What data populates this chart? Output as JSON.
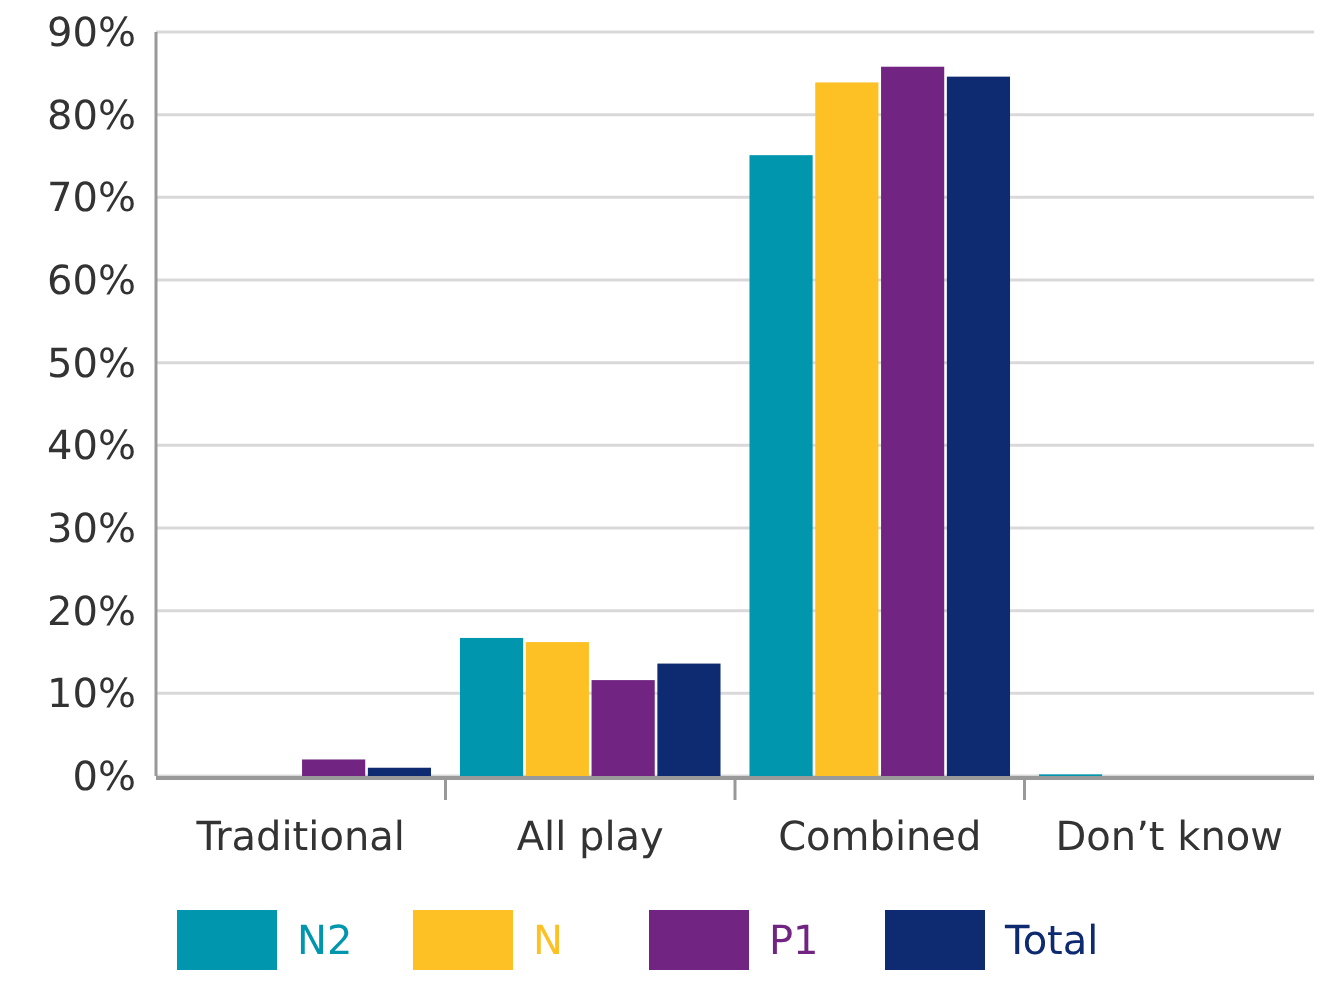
{
  "chart_data": {
    "type": "bar",
    "categories": [
      "Traditional",
      "All play",
      "Combined",
      "Don’t know"
    ],
    "series": [
      {
        "name": "N2",
        "color": "#0096ae",
        "values": [
          0,
          16.7,
          75.1,
          0.2
        ]
      },
      {
        "name": "N",
        "color": "#fdc125",
        "values": [
          0,
          16.2,
          83.9,
          0
        ]
      },
      {
        "name": "P1",
        "color": "#712481",
        "values": [
          2,
          11.6,
          85.8,
          0
        ]
      },
      {
        "name": "Total",
        "color": "#0e2b72",
        "values": [
          1,
          13.6,
          84.6,
          0
        ]
      }
    ],
    "ylim": [
      0,
      90
    ],
    "yticks": [
      {
        "value": 0,
        "label": "0%"
      },
      {
        "value": 10,
        "label": "10%"
      },
      {
        "value": 20,
        "label": "20%"
      },
      {
        "value": 30,
        "label": "30%"
      },
      {
        "value": 40,
        "label": "40%"
      },
      {
        "value": 50,
        "label": "50%"
      },
      {
        "value": 60,
        "label": "60%"
      },
      {
        "value": 70,
        "label": "70%"
      },
      {
        "value": 80,
        "label": "80%"
      },
      {
        "value": 90,
        "label": "90%"
      }
    ],
    "grid": "y",
    "legend": "bottom"
  }
}
